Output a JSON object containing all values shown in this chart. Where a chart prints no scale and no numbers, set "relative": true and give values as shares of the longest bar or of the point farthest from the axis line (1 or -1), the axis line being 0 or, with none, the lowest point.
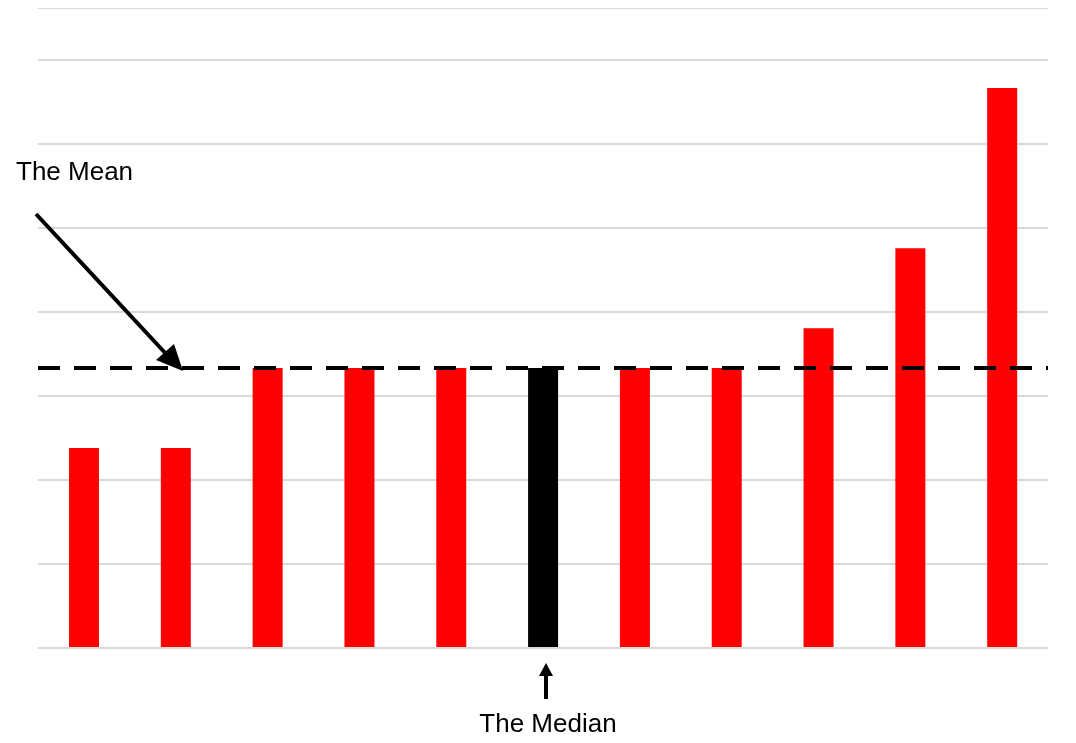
{
  "chart_data": {
    "type": "bar",
    "relative": true,
    "categories": [
      null,
      null,
      null,
      null,
      null,
      null,
      null,
      null,
      null,
      null,
      null
    ],
    "values": [
      0.357,
      0.357,
      0.5,
      0.5,
      0.5,
      0.5,
      0.5,
      0.5,
      0.571,
      0.714,
      1
    ],
    "colors": [
      "#ff0000",
      "#ff0000",
      "#ff0000",
      "#ff0000",
      "#ff0000",
      "#000000",
      "#ff0000",
      "#ff0000",
      "#ff0000",
      "#ff0000",
      "#ff0000"
    ],
    "grid": "y",
    "ref_lines": [
      {
        "axis": "y",
        "value": 0.5,
        "color": "#000000",
        "line_style": "dashed"
      }
    ],
    "annotations": [
      "The Mean",
      "The Median"
    ]
  }
}
